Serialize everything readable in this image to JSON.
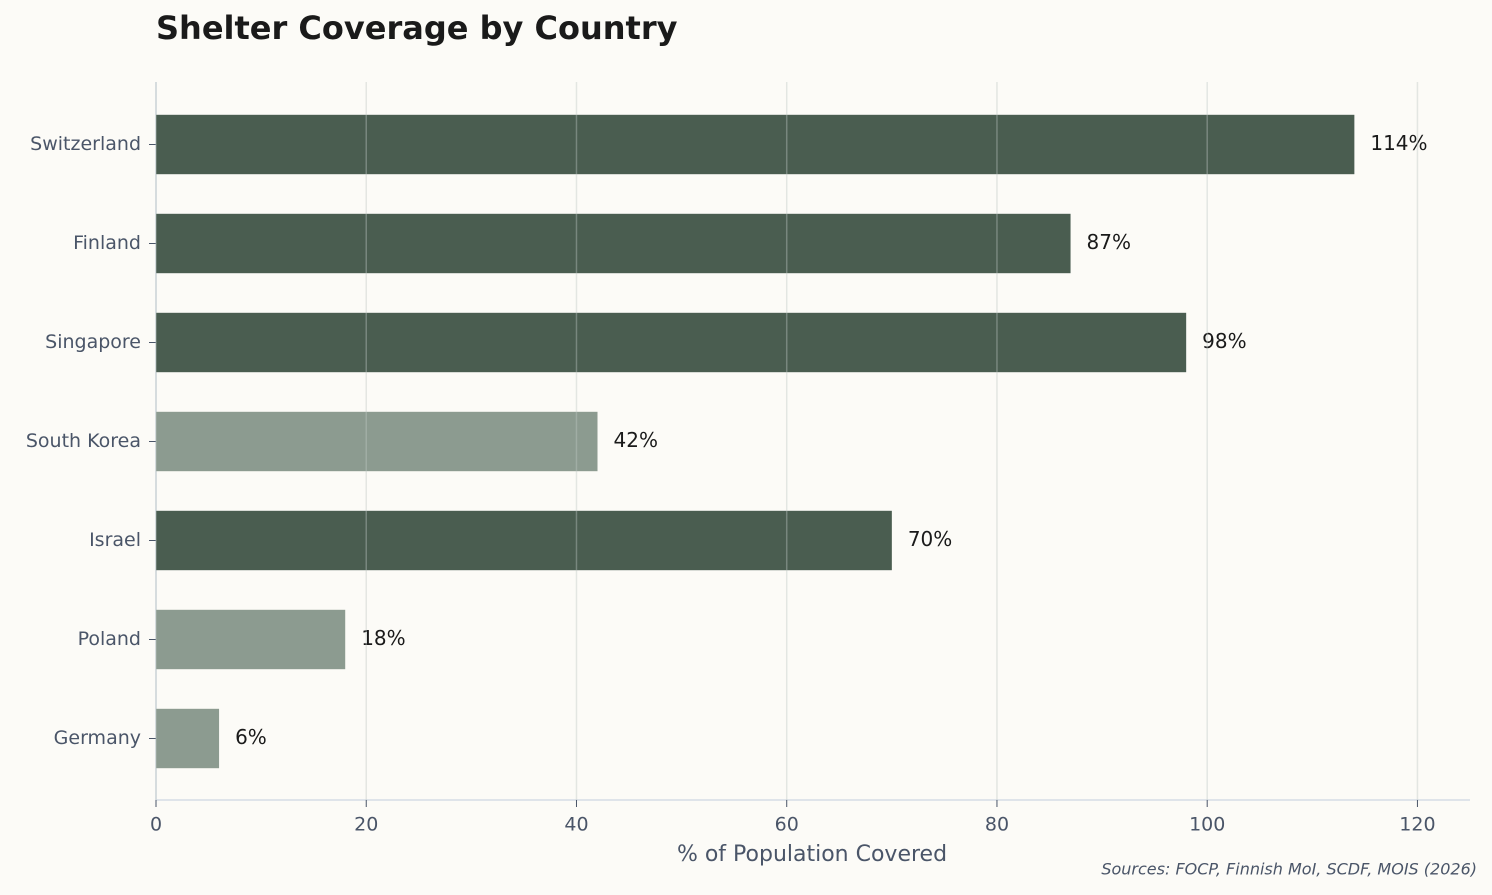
{
  "chart_data": {
    "type": "bar",
    "orientation": "horizontal",
    "title": "Shelter Coverage by Country",
    "x_label": "% of Population Covered",
    "source": "Sources: FOCP, Finnish MoI, SCDF, MOIS (2026)",
    "categories": [
      "Switzerland",
      "Finland",
      "Singapore",
      "South Korea",
      "Israel",
      "Poland",
      "Germany"
    ],
    "values": [
      114,
      87,
      98,
      42,
      70,
      18,
      6
    ],
    "value_labels": [
      "114%",
      "87%",
      "98%",
      "42%",
      "70%",
      "18%",
      "6%"
    ],
    "colors": [
      "#4a5d50",
      "#4a5d50",
      "#4a5d50",
      "#8c9b90",
      "#4a5d50",
      "#8c9b90",
      "#8c9b90"
    ],
    "xlim": [
      0,
      125
    ],
    "xticks": [
      0,
      20,
      40,
      60,
      80,
      100,
      120
    ],
    "grid": true
  }
}
